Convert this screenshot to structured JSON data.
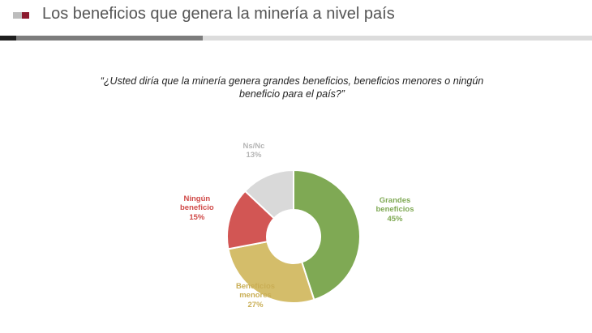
{
  "header": {
    "title": "Los beneficios que genera la minería a nivel país"
  },
  "question": "“¿Usted diría que la minería genera grandes beneficios, beneficios menores o ningún beneficio para el país?”",
  "colors": {
    "grandes": "#7fa954",
    "menores": "#d4bd6a",
    "ninguno": "#d25654",
    "nsnc": "#d9d9d9",
    "logo_gray": "#bdbdbd",
    "logo_red": "#8b1a2e"
  },
  "chart_data": {
    "type": "pie",
    "variant": "donut",
    "title": "¿Usted diría que la minería genera grandes beneficios, beneficios menores o ningún beneficio para el país?",
    "slices": [
      {
        "name": "Grandes beneficios",
        "label_lines": [
          "Grandes",
          "beneficios"
        ],
        "value": 45,
        "value_label": "45%",
        "color": "#7fa954",
        "label_color": "#7fa954"
      },
      {
        "name": "Beneficios menores",
        "label_lines": [
          "Beneficios",
          "menores"
        ],
        "value": 27,
        "value_label": "27%",
        "color": "#d4bd6a",
        "label_color": "#c9ae55"
      },
      {
        "name": "Ningún beneficio",
        "label_lines": [
          "Ningún",
          "beneficio"
        ],
        "value": 15,
        "value_label": "15%",
        "color": "#d25654",
        "label_color": "#d04a48"
      },
      {
        "name": "Ns/Nc",
        "label_lines": [
          "Ns/Nc"
        ],
        "value": 13,
        "value_label": "13%",
        "color": "#d9d9d9",
        "label_color": "#b5b5b5"
      }
    ],
    "start": "12 o'clock",
    "direction": "clockwise",
    "legend": "none"
  }
}
